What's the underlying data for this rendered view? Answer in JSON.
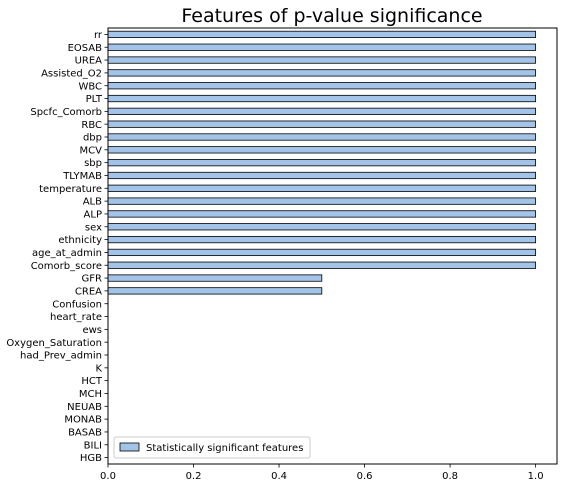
{
  "chart_data": {
    "type": "bar",
    "orientation": "horizontal",
    "title": "Features of p-value significance",
    "xlabel": "",
    "ylabel": "",
    "xlim": [
      0,
      1.05
    ],
    "xticks": [
      "0.0",
      "0.2",
      "0.4",
      "0.6",
      "0.8",
      "1.0"
    ],
    "grid": false,
    "legend_position": "lower-left",
    "categories": [
      "rr",
      "EOSAB",
      "UREA",
      "Assisted_O2",
      "WBC",
      "PLT",
      "Spcfc_Comorb",
      "RBC",
      "dbp",
      "MCV",
      "sbp",
      "TLYMAB",
      "temperature",
      "ALB",
      "ALP",
      "sex",
      "ethnicity",
      "age_at_admin",
      "Comorb_score",
      "GFR",
      "CREA",
      "Confusion",
      "heart_rate",
      "ews",
      "Oxygen_Saturation",
      "had_Prev_admin",
      "K",
      "HCT",
      "MCH",
      "NEUAB",
      "MONAB",
      "BASAB",
      "BILI",
      "HGB"
    ],
    "series": [
      {
        "name": "Statistically significant features",
        "color": "#a3c4e8",
        "edge_color": "#000000",
        "values": [
          1,
          1,
          1,
          1,
          1,
          1,
          1,
          1,
          1,
          1,
          1,
          1,
          1,
          1,
          1,
          1,
          1,
          1,
          1,
          0.5,
          0.5,
          0,
          0,
          0,
          0,
          0,
          0,
          0,
          0,
          0,
          0,
          0,
          0,
          0
        ]
      }
    ]
  }
}
